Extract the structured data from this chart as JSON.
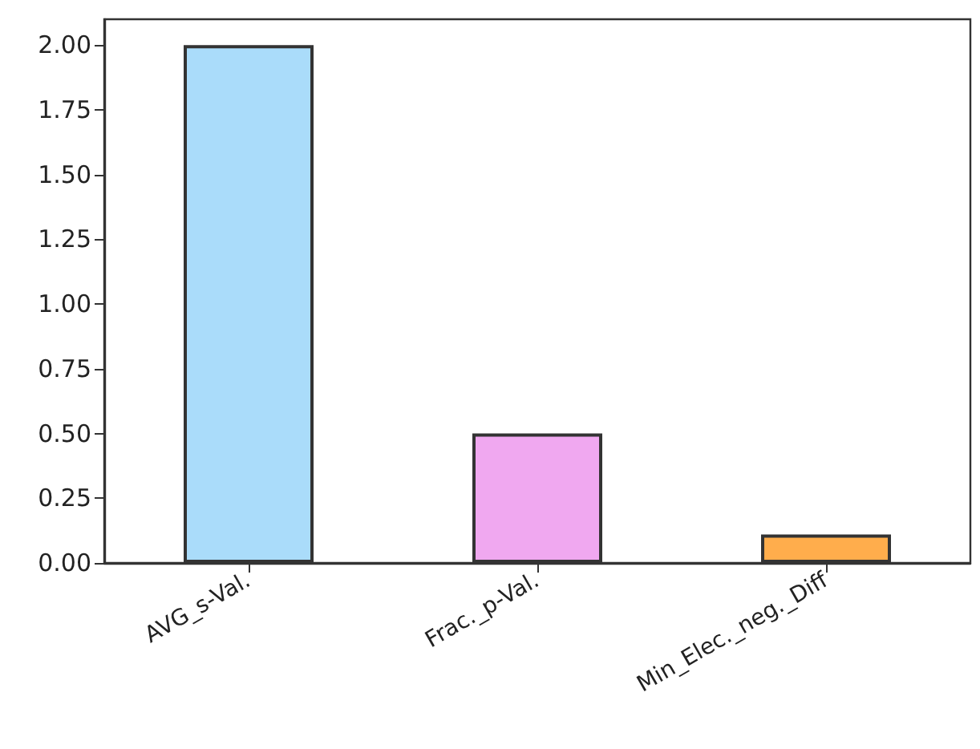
{
  "chart_data": {
    "type": "bar",
    "categories": [
      "AVG_s-Val.",
      "Frac._p-Val.",
      "Min_Elec._neg._Diff"
    ],
    "values": [
      2.0,
      0.5,
      0.11
    ],
    "colors": [
      "#aadcfa",
      "#f0a8f0",
      "#ffad4c"
    ],
    "ylim": [
      0,
      2.1
    ],
    "yticks": [
      {
        "value": 0,
        "label": "0.00"
      },
      {
        "value": 0.25,
        "label": "0.25"
      },
      {
        "value": 0.5,
        "label": "0.50"
      },
      {
        "value": 0.75,
        "label": "0.75"
      },
      {
        "value": 1,
        "label": "1.00"
      },
      {
        "value": 1.25,
        "label": "1.25"
      },
      {
        "value": 1.5,
        "label": "1.50"
      },
      {
        "value": 1.75,
        "label": "1.75"
      },
      {
        "value": 2,
        "label": "2.00"
      }
    ],
    "grid": false
  }
}
